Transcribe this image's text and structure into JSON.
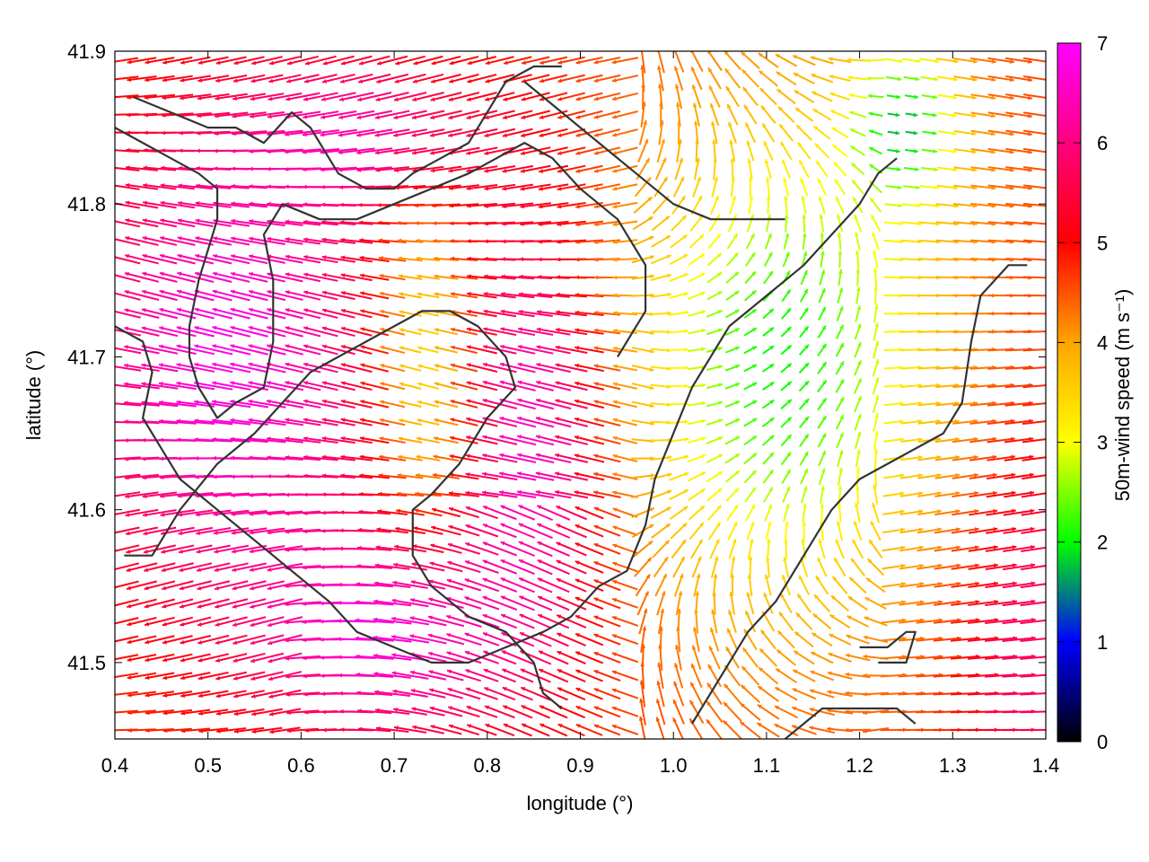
{
  "chart_data": {
    "type": "vector-field",
    "xlabel": "longitude (°)",
    "ylabel": "latitude (°)",
    "colorbar_label": "50m-wind speed (m s⁻¹)",
    "xlim": [
      0.4,
      1.4
    ],
    "ylim": [
      41.45,
      41.9
    ],
    "xticks": [
      "0.4",
      "0.5",
      "0.6",
      "0.7",
      "0.8",
      "0.9",
      "1.0",
      "1.1",
      "1.2",
      "1.3",
      "1.4"
    ],
    "yticks": [
      "41.5",
      "41.6",
      "41.7",
      "41.8",
      "41.9"
    ],
    "colorbar_ticks": [
      "0",
      "1",
      "2",
      "3",
      "4",
      "5",
      "6",
      "7"
    ],
    "colorbar_range": [
      0,
      7
    ],
    "colormap": [
      "#000000",
      "#0000ff",
      "#00ff00",
      "#ffff00",
      "#ffa500",
      "#ff0000",
      "#ff00ff"
    ],
    "contour_color": "#333333",
    "grid": false,
    "contours": [
      [
        [
          0.42,
          41.87
        ],
        [
          0.46,
          41.86
        ],
        [
          0.5,
          41.85
        ],
        [
          0.53,
          41.85
        ],
        [
          0.56,
          41.84
        ],
        [
          0.59,
          41.86
        ],
        [
          0.61,
          41.85
        ],
        [
          0.64,
          41.82
        ],
        [
          0.67,
          41.81
        ],
        [
          0.7,
          41.81
        ],
        [
          0.72,
          41.82
        ],
        [
          0.75,
          41.83
        ],
        [
          0.78,
          41.84
        ],
        [
          0.8,
          41.86
        ],
        [
          0.82,
          41.88
        ],
        [
          0.85,
          41.89
        ],
        [
          0.88,
          41.89
        ]
      ],
      [
        [
          0.4,
          41.85
        ],
        [
          0.43,
          41.84
        ],
        [
          0.46,
          41.83
        ],
        [
          0.49,
          41.82
        ],
        [
          0.51,
          41.81
        ],
        [
          0.51,
          41.79
        ],
        [
          0.5,
          41.77
        ],
        [
          0.49,
          41.75
        ],
        [
          0.48,
          41.72
        ],
        [
          0.48,
          41.7
        ],
        [
          0.49,
          41.68
        ],
        [
          0.51,
          41.66
        ],
        [
          0.53,
          41.67
        ],
        [
          0.56,
          41.68
        ],
        [
          0.57,
          41.71
        ],
        [
          0.57,
          41.75
        ],
        [
          0.56,
          41.78
        ],
        [
          0.58,
          41.8
        ],
        [
          0.62,
          41.79
        ],
        [
          0.66,
          41.79
        ],
        [
          0.7,
          41.8
        ],
        [
          0.74,
          41.81
        ],
        [
          0.78,
          41.82
        ],
        [
          0.81,
          41.83
        ],
        [
          0.84,
          41.84
        ],
        [
          0.87,
          41.83
        ],
        [
          0.9,
          41.81
        ],
        [
          0.94,
          41.79
        ],
        [
          0.97,
          41.76
        ],
        [
          0.97,
          41.73
        ],
        [
          0.94,
          41.7
        ]
      ],
      [
        [
          0.41,
          41.57
        ],
        [
          0.44,
          41.57
        ],
        [
          0.47,
          41.6
        ],
        [
          0.51,
          41.63
        ],
        [
          0.55,
          41.65
        ],
        [
          0.58,
          41.67
        ],
        [
          0.61,
          41.69
        ],
        [
          0.64,
          41.7
        ],
        [
          0.67,
          41.71
        ],
        [
          0.7,
          41.72
        ],
        [
          0.73,
          41.73
        ],
        [
          0.76,
          41.73
        ],
        [
          0.79,
          41.72
        ],
        [
          0.82,
          41.7
        ],
        [
          0.83,
          41.68
        ],
        [
          0.8,
          41.66
        ],
        [
          0.77,
          41.63
        ],
        [
          0.74,
          41.61
        ],
        [
          0.72,
          41.6
        ],
        [
          0.72,
          41.57
        ],
        [
          0.74,
          41.55
        ],
        [
          0.78,
          41.53
        ],
        [
          0.82,
          41.52
        ],
        [
          0.85,
          41.5
        ],
        [
          0.86,
          41.48
        ],
        [
          0.88,
          41.47
        ]
      ],
      [
        [
          0.4,
          41.72
        ],
        [
          0.43,
          41.71
        ],
        [
          0.44,
          41.69
        ],
        [
          0.43,
          41.66
        ],
        [
          0.45,
          41.64
        ],
        [
          0.47,
          41.62
        ],
        [
          0.51,
          41.6
        ],
        [
          0.55,
          41.58
        ],
        [
          0.59,
          41.56
        ],
        [
          0.63,
          41.54
        ],
        [
          0.66,
          41.52
        ],
        [
          0.7,
          41.51
        ],
        [
          0.74,
          41.5
        ],
        [
          0.78,
          41.5
        ],
        [
          0.82,
          41.51
        ],
        [
          0.86,
          41.52
        ],
        [
          0.89,
          41.53
        ],
        [
          0.92,
          41.55
        ],
        [
          0.95,
          41.56
        ],
        [
          0.97,
          41.59
        ],
        [
          0.98,
          41.62
        ],
        [
          1.0,
          41.65
        ],
        [
          1.02,
          41.68
        ],
        [
          1.04,
          41.7
        ],
        [
          1.06,
          41.72
        ],
        [
          1.1,
          41.74
        ],
        [
          1.14,
          41.76
        ],
        [
          1.17,
          41.78
        ],
        [
          1.2,
          41.8
        ],
        [
          1.22,
          41.82
        ],
        [
          1.24,
          41.83
        ]
      ],
      [
        [
          1.02,
          41.46
        ],
        [
          1.05,
          41.49
        ],
        [
          1.08,
          41.52
        ],
        [
          1.11,
          41.54
        ],
        [
          1.14,
          41.57
        ],
        [
          1.17,
          41.6
        ],
        [
          1.2,
          41.62
        ],
        [
          1.23,
          41.63
        ],
        [
          1.26,
          41.64
        ],
        [
          1.29,
          41.65
        ],
        [
          1.31,
          41.67
        ],
        [
          1.32,
          41.71
        ],
        [
          1.33,
          41.74
        ],
        [
          1.36,
          41.76
        ],
        [
          1.38,
          41.76
        ]
      ],
      [
        [
          1.12,
          41.45
        ],
        [
          1.16,
          41.47
        ],
        [
          1.2,
          41.47
        ],
        [
          1.24,
          41.47
        ],
        [
          1.26,
          41.46
        ]
      ],
      [
        [
          1.2,
          41.51
        ],
        [
          1.23,
          41.51
        ],
        [
          1.25,
          41.52
        ],
        [
          1.26,
          41.52
        ],
        [
          1.25,
          41.5
        ],
        [
          1.22,
          41.5
        ]
      ],
      [
        [
          0.84,
          41.88
        ],
        [
          0.88,
          41.86
        ],
        [
          0.92,
          41.84
        ],
        [
          0.96,
          41.82
        ],
        [
          1.0,
          41.8
        ],
        [
          1.04,
          41.79
        ],
        [
          1.08,
          41.79
        ],
        [
          1.12,
          41.79
        ]
      ]
    ],
    "wind_field_shown": "dense vectors on a regular lon/lat grid, colored by speed"
  }
}
